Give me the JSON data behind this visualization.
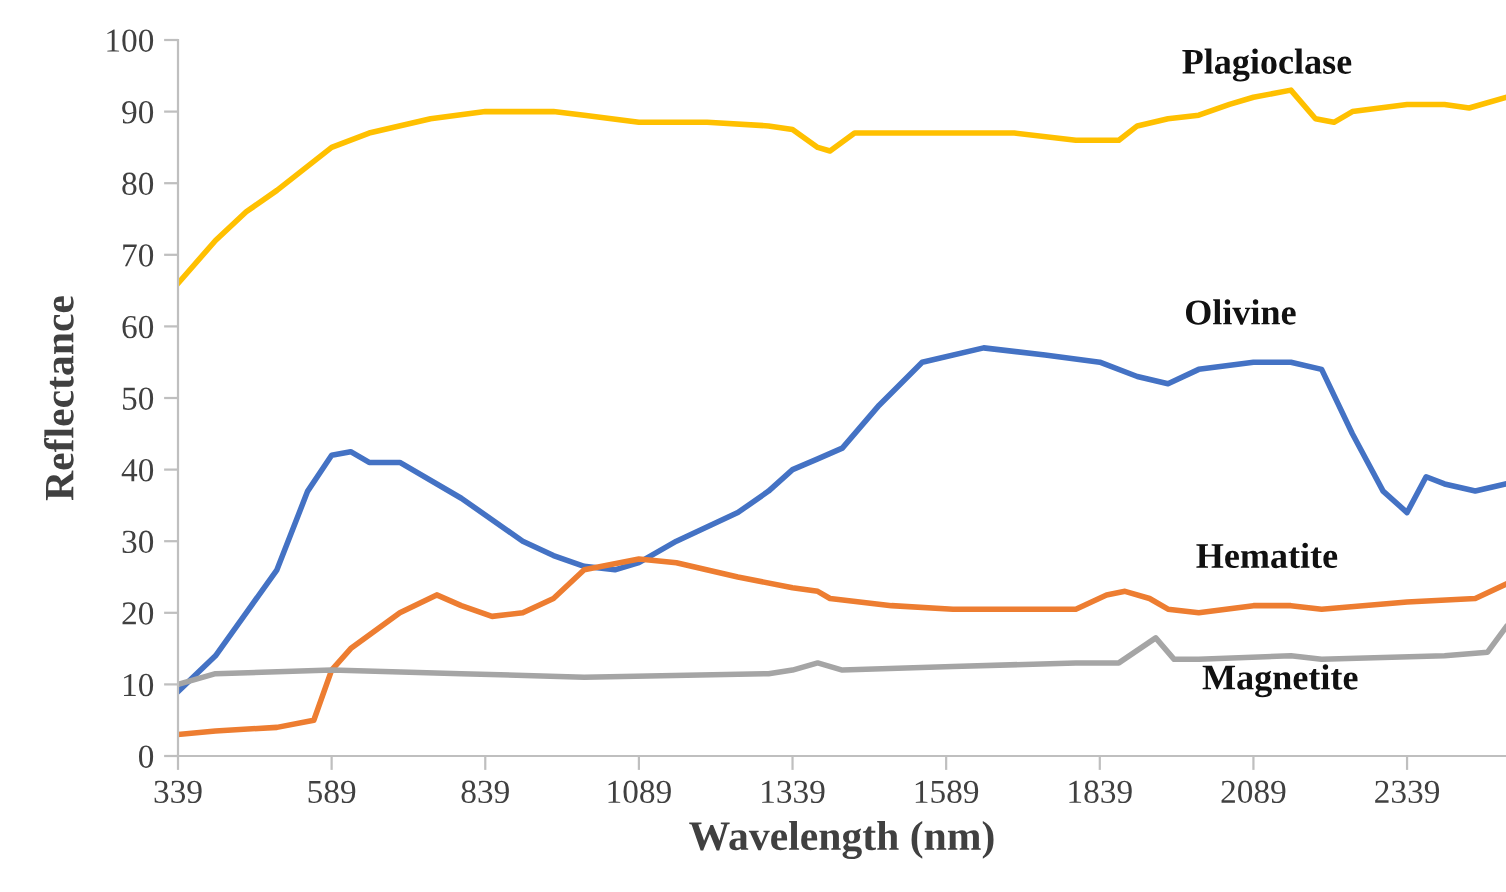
{
  "chart_data": {
    "type": "line",
    "xlabel": "Wavelength (nm)",
    "ylabel": "Reflectance",
    "xlim": [
      339,
      2500
    ],
    "xticks": [
      339,
      589,
      839,
      1089,
      1339,
      1589,
      1839,
      2089,
      2339
    ],
    "ylim": [
      0,
      100
    ],
    "yticks": [
      0,
      10,
      20,
      30,
      40,
      50,
      60,
      70,
      80,
      90,
      100
    ],
    "grid": false,
    "legend": false,
    "marker": "none",
    "line_style": "solid",
    "series": [
      {
        "name": "Plagioclase",
        "color": "#ffc000",
        "x": [
          339,
          400,
          450,
          500,
          589,
          650,
          750,
          839,
          950,
          1000,
          1089,
          1200,
          1300,
          1339,
          1380,
          1400,
          1440,
          1589,
          1700,
          1800,
          1870,
          1900,
          1950,
          2000,
          2050,
          2089,
          2150,
          2190,
          2220,
          2250,
          2339,
          2400,
          2440,
          2500
        ],
        "values": [
          66,
          72,
          76,
          79,
          85,
          87,
          89,
          90,
          90,
          89.5,
          88.5,
          88.5,
          88,
          87.5,
          85,
          84.5,
          87,
          87,
          87,
          86,
          86,
          88,
          89,
          89.5,
          91,
          92,
          93,
          89,
          88.5,
          90,
          91,
          91,
          90.5,
          92
        ]
      },
      {
        "name": "Olivine",
        "color": "#4472c4",
        "x": [
          339,
          400,
          450,
          500,
          550,
          589,
          620,
          650,
          700,
          800,
          900,
          950,
          1000,
          1050,
          1089,
          1150,
          1250,
          1300,
          1339,
          1380,
          1420,
          1480,
          1550,
          1650,
          1750,
          1839,
          1900,
          1950,
          2000,
          2089,
          2150,
          2200,
          2250,
          2300,
          2339,
          2370,
          2400,
          2450,
          2500
        ],
        "values": [
          9,
          14,
          20,
          26,
          37,
          42,
          42.5,
          41,
          41,
          36,
          30,
          28,
          26.5,
          26,
          27,
          30,
          34,
          37,
          40,
          41.5,
          43,
          49,
          55,
          57,
          56,
          55,
          53,
          52,
          54,
          55,
          55,
          54,
          45,
          37,
          34,
          39,
          38,
          37,
          38
        ]
      },
      {
        "name": "Hematite",
        "color": "#ed7d31",
        "x": [
          339,
          400,
          500,
          560,
          589,
          620,
          700,
          760,
          800,
          850,
          900,
          950,
          1000,
          1089,
          1150,
          1250,
          1339,
          1380,
          1400,
          1500,
          1600,
          1700,
          1800,
          1850,
          1880,
          1920,
          1950,
          2000,
          2089,
          2150,
          2200,
          2339,
          2450,
          2500
        ],
        "values": [
          3,
          3.5,
          4,
          5,
          12,
          15,
          20,
          22.5,
          21,
          19.5,
          20,
          22,
          26,
          27.5,
          27,
          25,
          23.5,
          23,
          22,
          21,
          20.5,
          20.5,
          20.5,
          22.5,
          23,
          22,
          20.5,
          20,
          21,
          21,
          20.5,
          21.5,
          22,
          24
        ]
      },
      {
        "name": "Magnetite",
        "color": "#a5a5a5",
        "x": [
          339,
          400,
          589,
          800,
          1000,
          1300,
          1339,
          1380,
          1420,
          1600,
          1800,
          1870,
          1930,
          1960,
          2000,
          2150,
          2200,
          2400,
          2470,
          2500
        ],
        "values": [
          10,
          11.5,
          12,
          11.5,
          11,
          11.5,
          12,
          13,
          12,
          12.5,
          13,
          13,
          16.5,
          13.5,
          13.5,
          14,
          13.5,
          14,
          14.5,
          18
        ]
      }
    ]
  }
}
